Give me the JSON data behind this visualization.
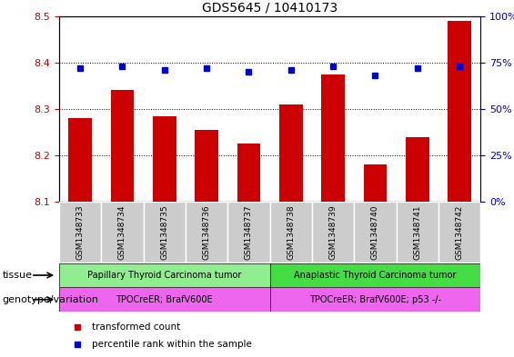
{
  "title": "GDS5645 / 10410173",
  "samples": [
    "GSM1348733",
    "GSM1348734",
    "GSM1348735",
    "GSM1348736",
    "GSM1348737",
    "GSM1348738",
    "GSM1348739",
    "GSM1348740",
    "GSM1348741",
    "GSM1348742"
  ],
  "transformed_count": [
    8.28,
    8.34,
    8.285,
    8.255,
    8.225,
    8.31,
    8.375,
    8.18,
    8.24,
    8.49
  ],
  "percentile_rank": [
    72,
    73,
    71,
    72,
    70,
    71,
    73,
    68,
    72,
    73
  ],
  "ylim_left": [
    8.1,
    8.5
  ],
  "ylim_right": [
    0,
    100
  ],
  "yticks_left": [
    8.1,
    8.2,
    8.3,
    8.4,
    8.5
  ],
  "yticks_right": [
    0,
    25,
    50,
    75,
    100
  ],
  "bar_color": "#cc0000",
  "dot_color": "#0000cc",
  "bar_bottom": 8.1,
  "tissue_groups": [
    {
      "label": "Papillary Thyroid Carcinoma tumor",
      "start": 0,
      "end": 5,
      "color": "#90ee90"
    },
    {
      "label": "Anaplastic Thyroid Carcinoma tumor",
      "start": 5,
      "end": 10,
      "color": "#44dd44"
    }
  ],
  "genotype_groups": [
    {
      "label": "TPOCreER; BrafV600E",
      "start": 0,
      "end": 5,
      "color": "#ee66ee"
    },
    {
      "label": "TPOCreER; BrafV600E; p53 -/-",
      "start": 5,
      "end": 10,
      "color": "#ee66ee"
    }
  ],
  "legend_items": [
    {
      "label": "transformed count",
      "color": "#cc0000"
    },
    {
      "label": "percentile rank within the sample",
      "color": "#0000cc"
    }
  ],
  "tissue_label": "tissue",
  "genotype_label": "genotype/variation",
  "tick_label_color_left": "#cc0000",
  "tick_label_color_right": "#0000cc",
  "sample_bg_color": "#cccccc",
  "col_sep_color": "#ffffff"
}
